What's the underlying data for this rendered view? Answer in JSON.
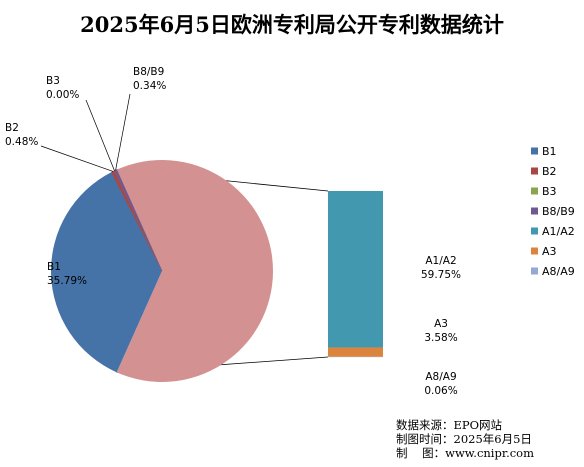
{
  "chart_data": {
    "type": "pie",
    "title": "2025年6月5日欧洲专利局公开专利数据统计",
    "main_slices": [
      {
        "name": "B1",
        "value": 35.79,
        "label": "35.79%",
        "color": "#4572A7"
      },
      {
        "name": "B2",
        "value": 0.48,
        "label": "0.48%",
        "color": "#AA4643"
      },
      {
        "name": "B3",
        "value": 0.0,
        "label": "0.00%",
        "color": "#89A54E"
      },
      {
        "name": "B8/B9",
        "value": 0.34,
        "label": "0.34%",
        "color": "#71588F"
      }
    ],
    "other_slice": {
      "value": 63.39,
      "color": "#D39291"
    },
    "breakout_bar": [
      {
        "name": "A1/A2",
        "value": 59.75,
        "label": "59.75%",
        "color": "#4198AF"
      },
      {
        "name": "A3",
        "value": 3.58,
        "label": "3.58%",
        "color": "#DB843D"
      },
      {
        "name": "A8/A9",
        "value": 0.06,
        "label": "0.06%",
        "color": "#93A9CF"
      }
    ],
    "legend": {
      "position": "right",
      "items": [
        {
          "name": "B1",
          "color": "#4572A7"
        },
        {
          "name": "B2",
          "color": "#AA4643"
        },
        {
          "name": "B3",
          "color": "#89A54E"
        },
        {
          "name": "B8/B9",
          "color": "#71588F"
        },
        {
          "name": "A1/A2",
          "color": "#4198AF"
        },
        {
          "name": "A3",
          "color": "#DB843D"
        },
        {
          "name": "A8/A9",
          "color": "#93A9CF"
        }
      ]
    }
  },
  "source": {
    "line1": "数据来源：EPO网站",
    "line2": "制图时间：2025年6月5日",
    "line3": "制    图：www.cnipr.com"
  }
}
